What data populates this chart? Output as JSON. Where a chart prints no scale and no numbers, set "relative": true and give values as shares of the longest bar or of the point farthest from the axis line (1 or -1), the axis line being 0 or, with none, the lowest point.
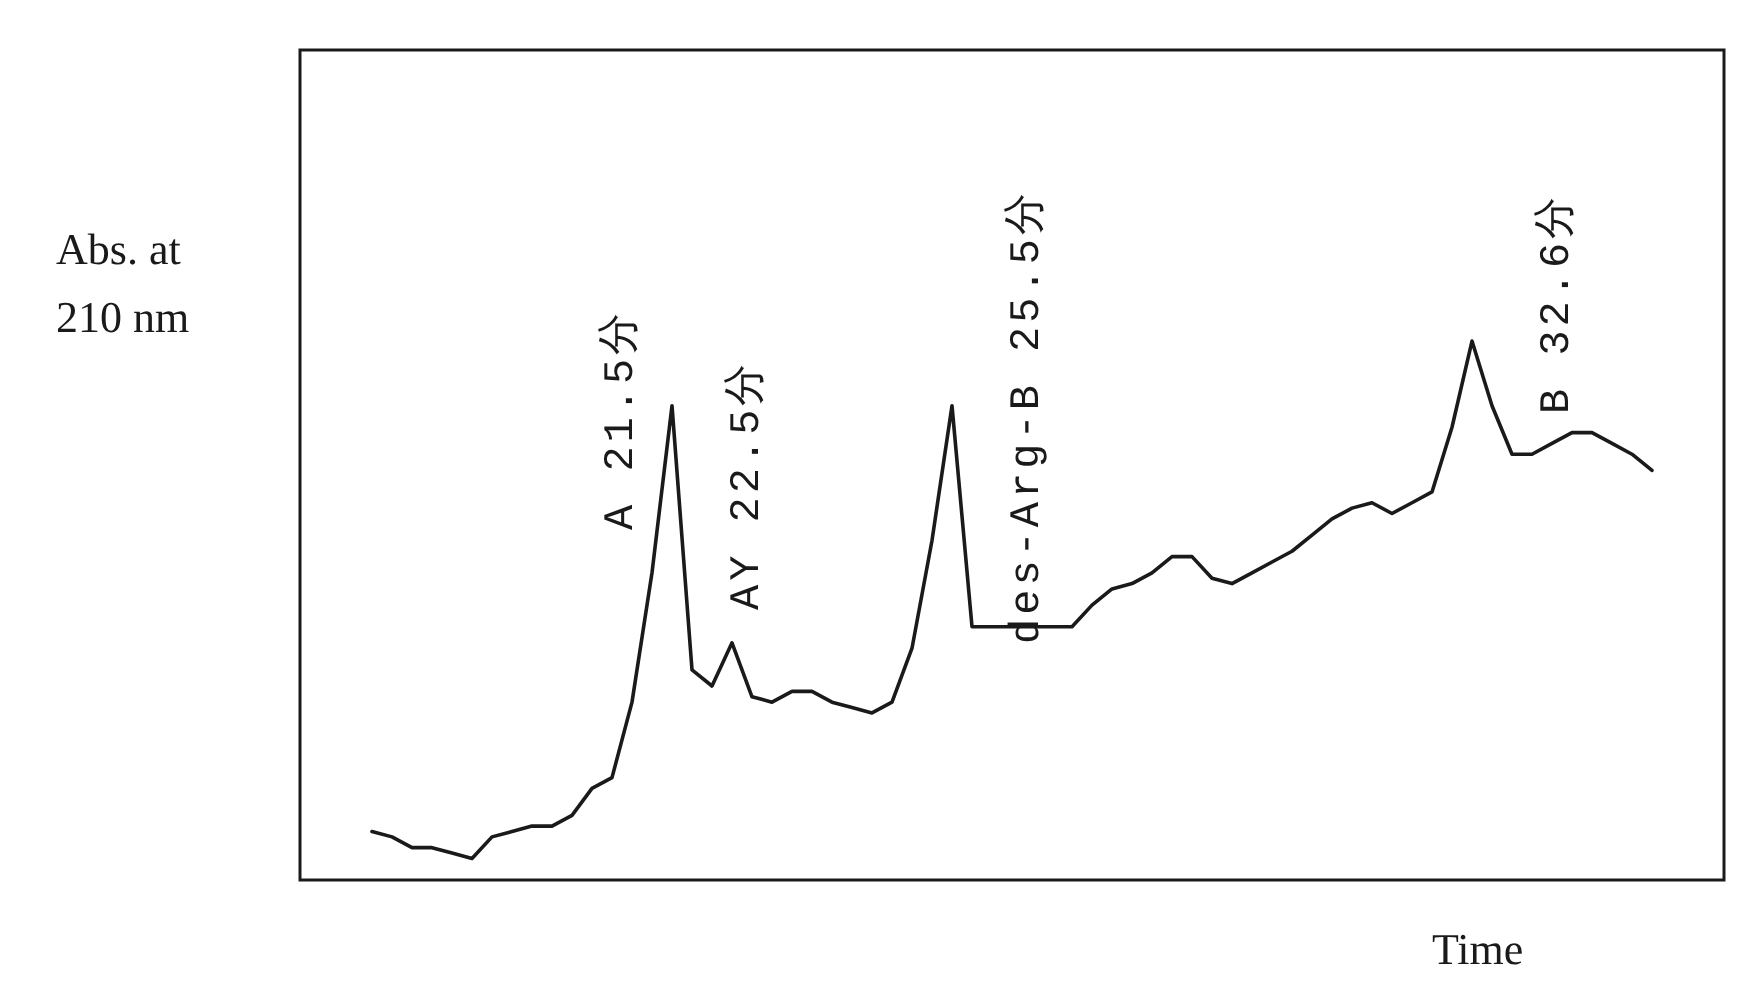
{
  "chart_data": {
    "type": "line",
    "relative": true,
    "color": "#1a1a1a",
    "xlabel": "Time",
    "ylabel": "Abs. at 210 nm",
    "categories": [
      null,
      null,
      null,
      null,
      null,
      null,
      null,
      null,
      null,
      null,
      null,
      null,
      null,
      null,
      null,
      null,
      null,
      null,
      null,
      null,
      null,
      null,
      null,
      null,
      null,
      null,
      null,
      null,
      null,
      null,
      null,
      null,
      null,
      null,
      null,
      null,
      null,
      null,
      null,
      null,
      null,
      null,
      null,
      null,
      null,
      null,
      null,
      null,
      null,
      null,
      null,
      null,
      null,
      null,
      null,
      null,
      null,
      null,
      null,
      null,
      null,
      null,
      null,
      null,
      null
    ],
    "values": [
      0.09,
      0.08,
      0.06,
      0.06,
      0.05,
      0.04,
      0.08,
      0.09,
      0.1,
      0.1,
      0.12,
      0.17,
      0.19,
      0.33,
      0.57,
      0.88,
      0.39,
      0.36,
      0.44,
      0.34,
      0.33,
      0.35,
      0.35,
      0.33,
      0.32,
      0.31,
      0.33,
      0.43,
      0.63,
      0.88,
      0.47,
      0.47,
      0.47,
      0.47,
      0.47,
      0.47,
      0.51,
      0.54,
      0.55,
      0.57,
      0.6,
      0.6,
      0.56,
      0.55,
      0.57,
      0.59,
      0.61,
      0.64,
      0.67,
      0.69,
      0.7,
      0.68,
      0.7,
      0.72,
      0.84,
      1.0,
      0.88,
      0.79,
      0.79,
      0.81,
      0.83,
      0.83,
      0.81,
      0.79,
      0.76
    ],
    "annotations": [
      "A 21.5分",
      "AY 22.5分",
      "des-Arg-B 25.5分",
      "B 32.6分"
    ]
  }
}
